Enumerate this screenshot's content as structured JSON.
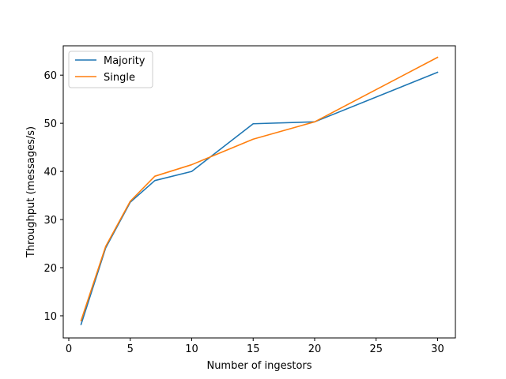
{
  "chart_data": {
    "type": "line",
    "xlabel": "Number of ingestors",
    "ylabel": "Throughput (messages/s)",
    "xlim": [
      -0.45,
      31.45
    ],
    "ylim": [
      5.4,
      66.1
    ],
    "xticks": [
      0,
      5,
      10,
      15,
      20,
      25,
      30
    ],
    "yticks": [
      10,
      20,
      30,
      40,
      50,
      60
    ],
    "grid": false,
    "legend_position": "top-left",
    "series": [
      {
        "name": "Majority",
        "color": "#1f77b4",
        "x": [
          1,
          3,
          5,
          7,
          10,
          15,
          20,
          30
        ],
        "y": [
          8.2,
          24.1,
          33.6,
          38.1,
          40.0,
          49.9,
          50.3,
          60.6
        ]
      },
      {
        "name": "Single",
        "color": "#ff7f0e",
        "x": [
          1,
          3,
          5,
          7,
          10,
          15,
          20,
          30
        ],
        "y": [
          9.0,
          24.4,
          33.8,
          39.0,
          41.4,
          46.7,
          50.3,
          63.7
        ]
      }
    ]
  }
}
